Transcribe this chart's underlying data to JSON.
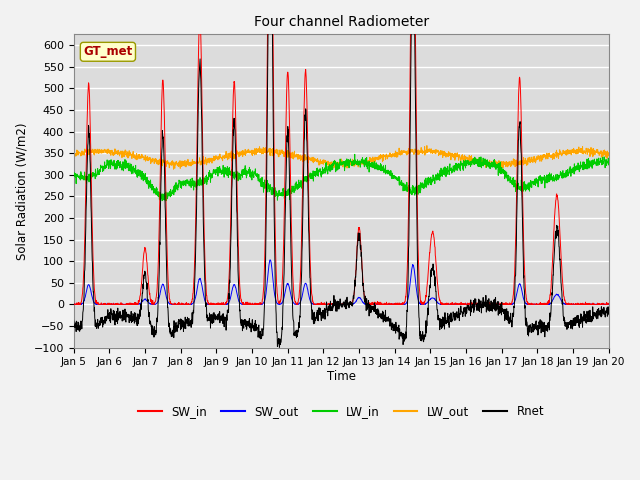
{
  "title": "Four channel Radiometer",
  "xlabel": "Time",
  "ylabel": "Solar Radiation (W/m2)",
  "annotation": "GT_met",
  "ylim": [
    -100,
    625
  ],
  "yticks": [
    -100,
    -50,
    0,
    50,
    100,
    150,
    200,
    250,
    300,
    350,
    400,
    450,
    500,
    550,
    600
  ],
  "xtick_labels": [
    "Jan 5",
    "Jan 6",
    "Jan 7",
    "Jan 8",
    "Jan 9",
    "Jan 10",
    "Jan 11",
    "Jan 12",
    "Jan 13",
    "Jan 14",
    "Jan 15",
    "Jan 16",
    "Jan 17",
    "Jan 18",
    "Jan 19",
    "Jan 20"
  ],
  "series_colors": {
    "SW_in": "#ff0000",
    "SW_out": "#0000ff",
    "LW_in": "#00cc00",
    "LW_out": "#ffa500",
    "Rnet": "#000000"
  },
  "bg_color": "#dcdcdc",
  "grid_color": "#ffffff",
  "fig_color": "#f2f2f2",
  "annotation_bg": "#ffffcc",
  "annotation_border": "#999900",
  "annotation_text_color": "#aa0000"
}
